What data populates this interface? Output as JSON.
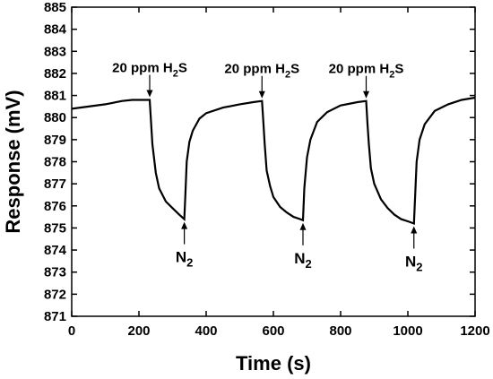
{
  "chart_data": {
    "type": "line",
    "xlabel": "Time (s)",
    "ylabel": "Response (mV)",
    "xlim": [
      0,
      1200
    ],
    "ylim": [
      871,
      885
    ],
    "xticks": [
      0,
      200,
      400,
      600,
      800,
      1000,
      1200
    ],
    "yticks": [
      871,
      872,
      873,
      874,
      875,
      876,
      877,
      878,
      879,
      880,
      881,
      882,
      883,
      884,
      885
    ],
    "grid": false,
    "series": [
      {
        "color": "#000000",
        "x": [
          0,
          50,
          100,
          150,
          180,
          210,
          232,
          236,
          240,
          250,
          260,
          280,
          300,
          320,
          335,
          338,
          342,
          350,
          360,
          380,
          400,
          450,
          500,
          540,
          566,
          570,
          574,
          580,
          590,
          600,
          620,
          640,
          660,
          680,
          688,
          692,
          700,
          710,
          730,
          760,
          800,
          850,
          876,
          880,
          884,
          890,
          900,
          920,
          940,
          960,
          980,
          1000,
          1018,
          1022,
          1026,
          1035,
          1050,
          1080,
          1120,
          1160,
          1200
        ],
        "y": [
          880.4,
          880.5,
          880.6,
          880.75,
          880.8,
          880.8,
          880.8,
          879.8,
          878.8,
          877.5,
          876.8,
          876.2,
          875.9,
          875.6,
          875.4,
          876.5,
          878.0,
          878.9,
          879.4,
          879.95,
          880.2,
          880.45,
          880.6,
          880.7,
          880.75,
          879.8,
          878.8,
          877.6,
          876.9,
          876.4,
          875.95,
          875.7,
          875.5,
          875.4,
          875.35,
          876.8,
          878.2,
          879.0,
          879.8,
          880.25,
          880.55,
          880.7,
          880.75,
          879.7,
          878.8,
          877.7,
          877.0,
          876.3,
          875.9,
          875.6,
          875.4,
          875.3,
          875.2,
          876.6,
          878.0,
          879.0,
          879.7,
          880.3,
          880.6,
          880.8,
          880.9
        ]
      }
    ],
    "annotations": [
      {
        "text": "20 ppm H",
        "sub": "2",
        "after": "S",
        "x": 232,
        "y": 880.8
      },
      {
        "text": "20 ppm H",
        "sub": "2",
        "after": "S",
        "x": 566,
        "y": 880.75
      },
      {
        "text": "20 ppm H",
        "sub": "2",
        "after": "S",
        "x": 876,
        "y": 880.75
      },
      {
        "text": "N",
        "sub": "2",
        "after": "",
        "x": 335,
        "y": 875.4
      },
      {
        "text": "N",
        "sub": "2",
        "after": "",
        "x": 688,
        "y": 875.35
      },
      {
        "text": "N",
        "sub": "2",
        "after": "",
        "x": 1018,
        "y": 875.2
      }
    ]
  }
}
